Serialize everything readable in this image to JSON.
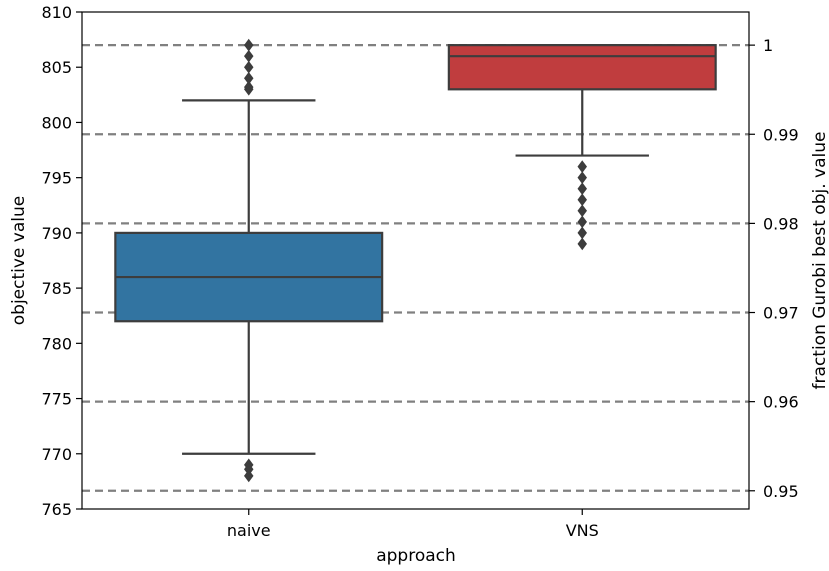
{
  "chart_data": {
    "type": "box",
    "xlabel": "approach",
    "ylabel": "objective value",
    "y2label": "fraction Gurobi best obj. value",
    "ylim": [
      765,
      810
    ],
    "yticks": [
      765,
      770,
      775,
      780,
      785,
      790,
      795,
      800,
      805,
      810
    ],
    "ytick_labels": [
      "765",
      "770",
      "775",
      "780",
      "785",
      "790",
      "795",
      "800",
      "805",
      "810"
    ],
    "y2ticks": [
      1,
      0.99,
      0.98,
      0.97,
      0.96,
      0.95
    ],
    "y2tick_labels": [
      "1",
      "0.99",
      "0.98",
      "0.97",
      "0.96",
      "0.95"
    ],
    "reference_best": 807,
    "grid": false,
    "categories": [
      "naive",
      "VNS"
    ],
    "boxes": [
      {
        "category": "naive",
        "color": "#3274a1",
        "q1": 782,
        "median": 786,
        "q3": 790,
        "whisker_low": 770,
        "whisker_high": 802,
        "outliers": [
          803,
          803.2,
          804,
          805,
          806,
          807,
          769,
          768.6,
          768
        ]
      },
      {
        "category": "VNS",
        "color": "#c03d3e",
        "q1": 803,
        "median": 806,
        "q3": 807,
        "whisker_low": 797,
        "whisker_high": 807,
        "outliers": [
          796,
          795,
          794,
          793,
          792,
          791,
          790,
          789
        ]
      }
    ]
  }
}
